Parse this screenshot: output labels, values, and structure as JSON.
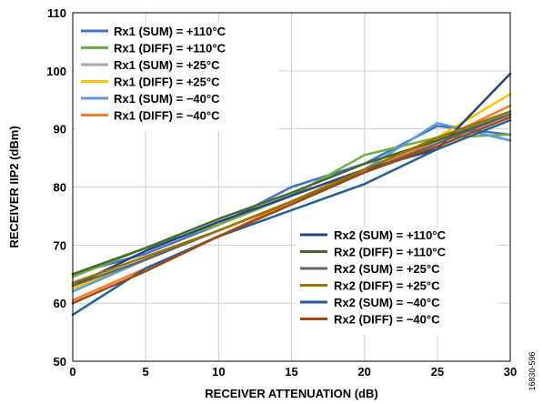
{
  "chart_data": {
    "type": "line",
    "xlabel": "RECEIVER ATTENUATION (dB)",
    "ylabel": "RECEIVER IIP2 (dBm)",
    "xlim": [
      0,
      30
    ],
    "ylim": [
      50,
      110
    ],
    "xticks": [
      0,
      5,
      10,
      15,
      20,
      25,
      30
    ],
    "yticks": [
      50,
      60,
      70,
      80,
      90,
      100,
      110
    ],
    "grid": true,
    "x": [
      0,
      5,
      10,
      15,
      20,
      25,
      30
    ],
    "figure_id": "16830-596",
    "legend_groups": [
      {
        "placement": "top-left",
        "series_indices": [
          0,
          1,
          2,
          3,
          4,
          5
        ]
      },
      {
        "placement": "bottom-right",
        "series_indices": [
          6,
          7,
          8,
          9,
          10,
          11
        ]
      }
    ],
    "series": [
      {
        "name": "Rx1 (SUM) = +110°C",
        "color": "#4472c4",
        "values": [
          65,
          68.5,
          73.5,
          80,
          84,
          90.5,
          89
        ]
      },
      {
        "name": "Rx1 (DIFF) = +110°C",
        "color": "#70ad47",
        "values": [
          64.5,
          69.5,
          73.5,
          78.5,
          85.5,
          88.5,
          89
        ]
      },
      {
        "name": "Rx1 (SUM) = +25°C",
        "color": "#a5a5a5",
        "values": [
          63,
          67.5,
          72.5,
          77.5,
          83,
          88,
          93
        ]
      },
      {
        "name": "Rx1 (DIFF) = +25°C",
        "color": "#ffc000",
        "values": [
          62.5,
          67.5,
          72.5,
          77.5,
          83,
          88.5,
          96
        ]
      },
      {
        "name": "Rx1 (SUM) = −40°C",
        "color": "#5b9bd5",
        "values": [
          62,
          67.5,
          72.5,
          77.5,
          83,
          91,
          88
        ]
      },
      {
        "name": "Rx1 (DIFF) = −40°C",
        "color": "#ed7d31",
        "values": [
          60.5,
          66,
          71.5,
          77.5,
          82.5,
          88,
          94
        ]
      },
      {
        "name": "Rx2 (SUM) = +110°C",
        "color": "#264478",
        "values": [
          63,
          69,
          74,
          78.5,
          83,
          86.5,
          99.5
        ]
      },
      {
        "name": "Rx2 (DIFF) = +110°C",
        "color": "#43682b",
        "values": [
          65,
          69.5,
          74.5,
          79,
          84,
          88,
          92.5
        ]
      },
      {
        "name": "Rx2 (SUM) = +25°C",
        "color": "#636363",
        "values": [
          63,
          67.5,
          72.5,
          77.5,
          82.5,
          87.5,
          92.5
        ]
      },
      {
        "name": "Rx2 (DIFF) = +25°C",
        "color": "#997300",
        "values": [
          63.5,
          68,
          72.5,
          77.5,
          83,
          88.5,
          93
        ]
      },
      {
        "name": "Rx2 (SUM) = −40°C",
        "color": "#255e91",
        "values": [
          58,
          66,
          71.5,
          76,
          80.5,
          86.5,
          91.5
        ]
      },
      {
        "name": "Rx2 (DIFF) = −40°C",
        "color": "#9e480e",
        "values": [
          60,
          65.5,
          71.5,
          77,
          82.5,
          87,
          92
        ]
      }
    ]
  }
}
